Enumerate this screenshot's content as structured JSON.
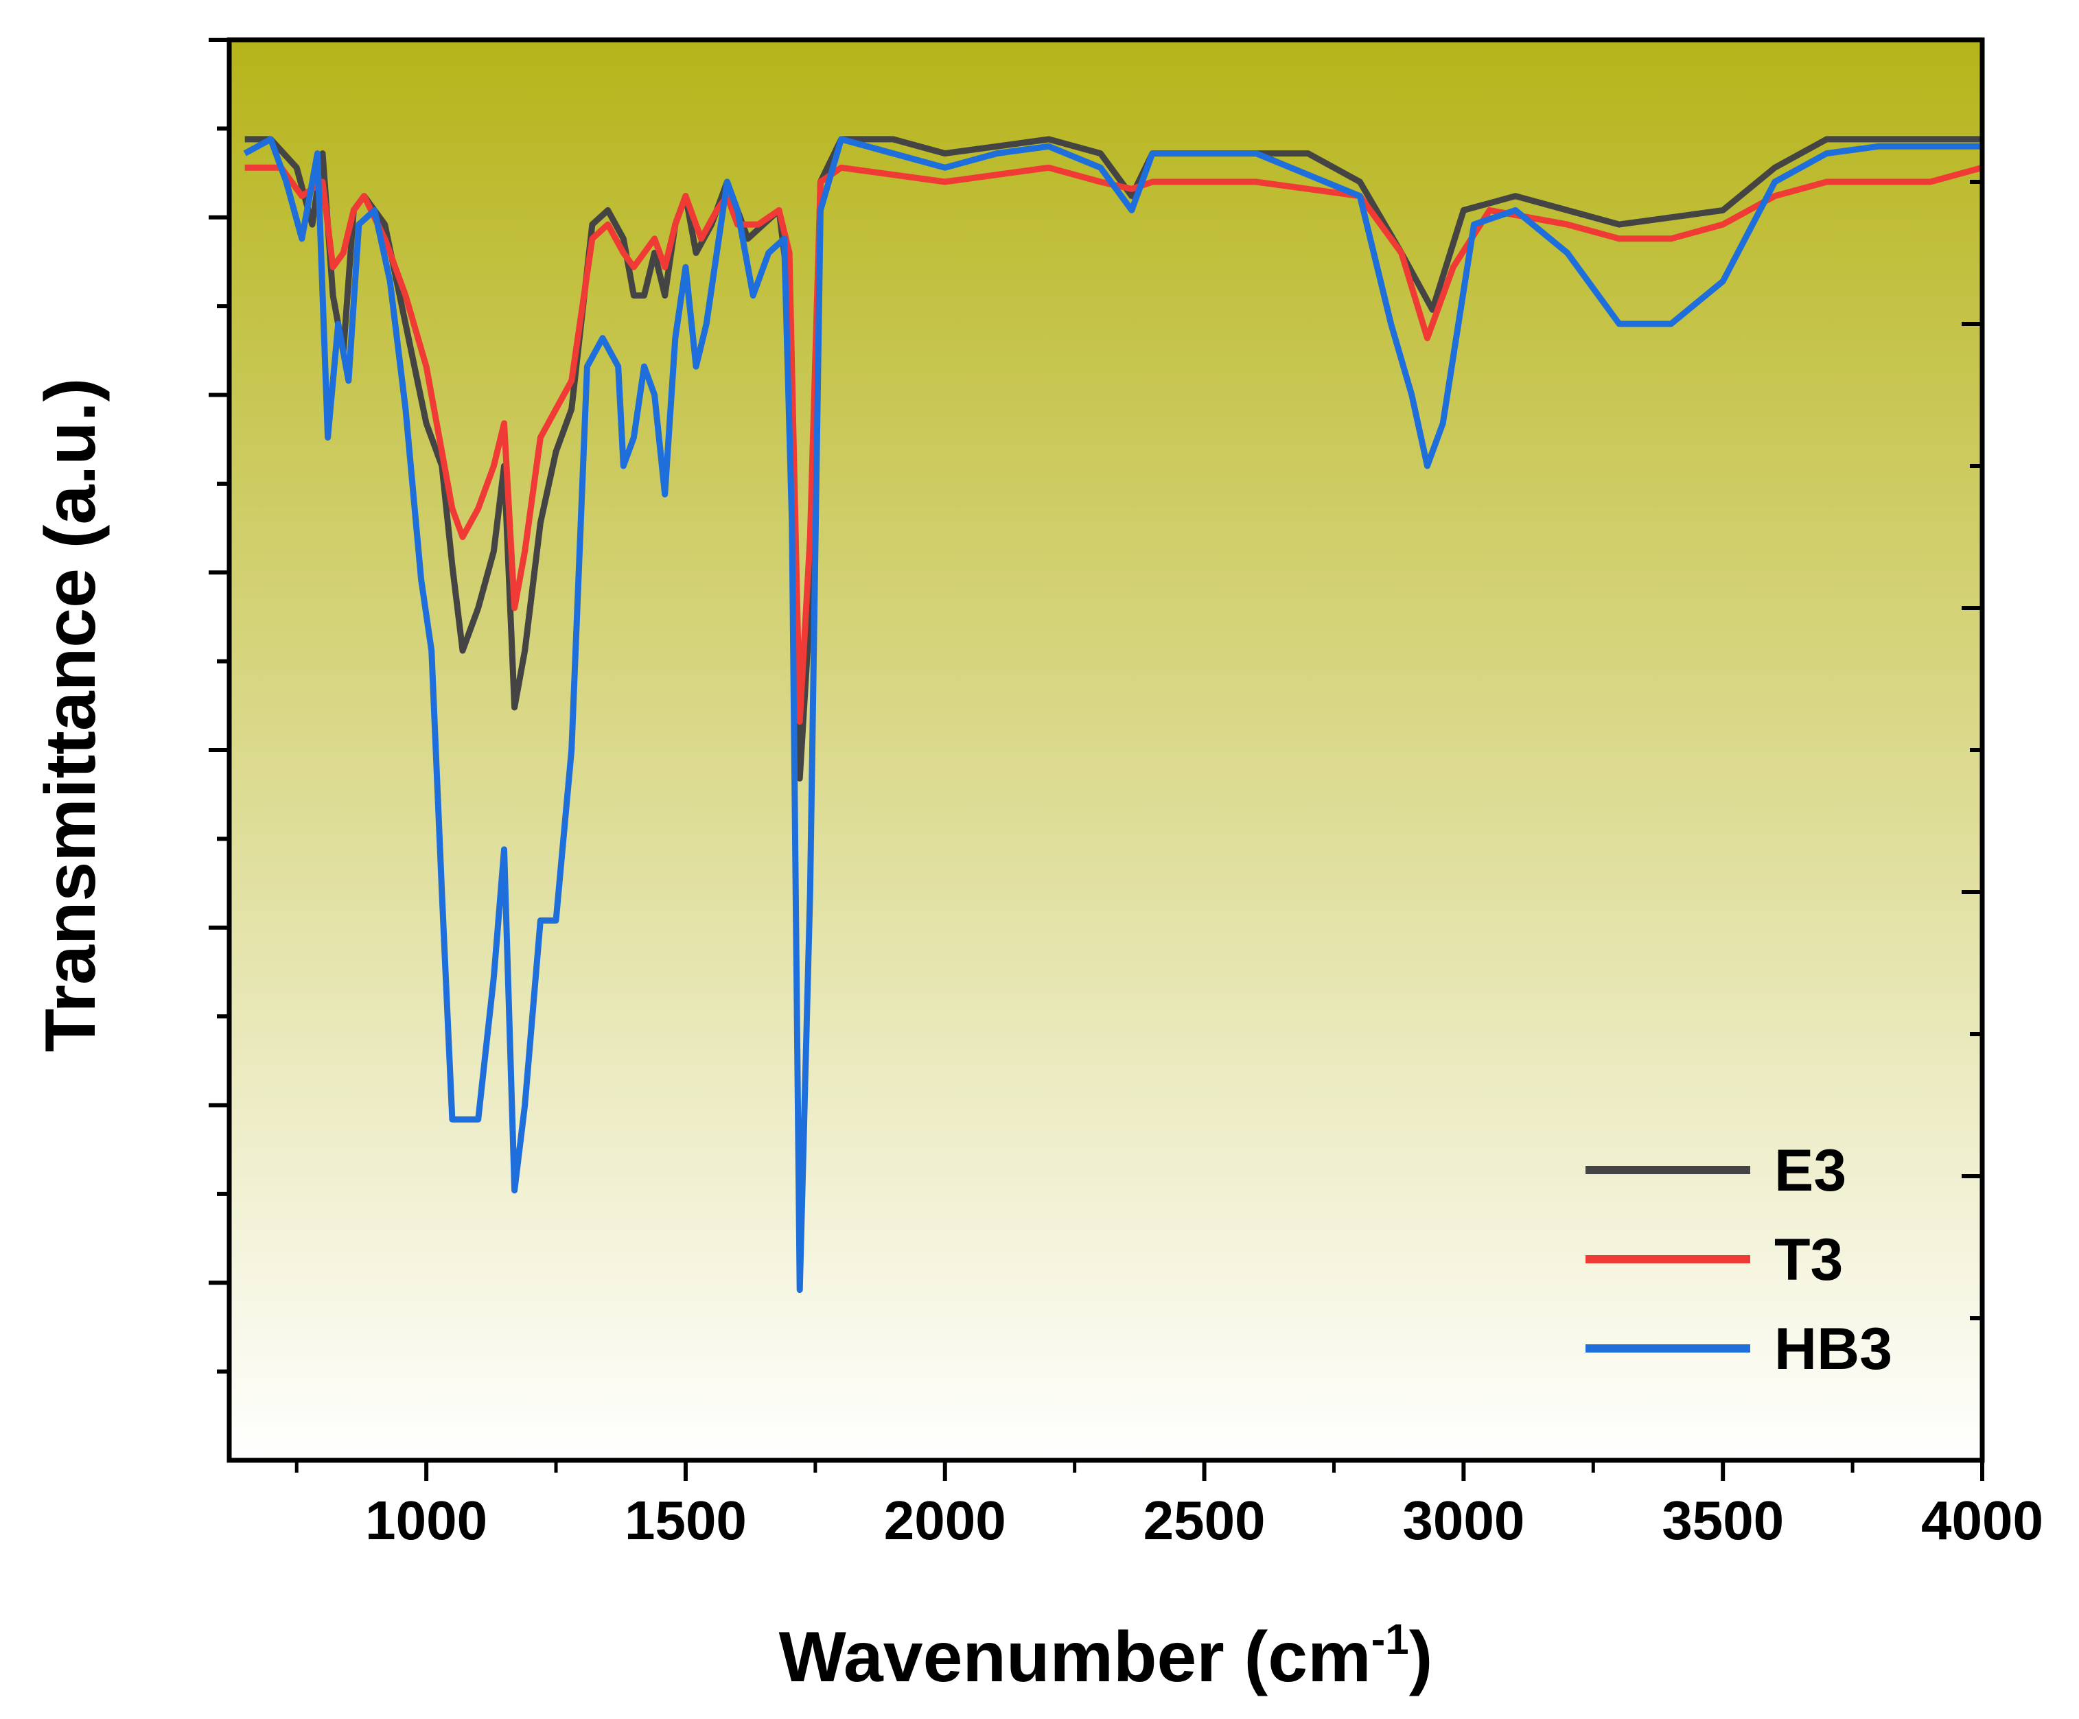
{
  "chart_data": {
    "type": "line",
    "xlabel": "Wavenumber (cm",
    "xlabel_sup": "-1",
    "xlabel_close": ")",
    "ylabel": "Transmittance (a.u.)",
    "xlim": [
      620,
      4000
    ],
    "ylim": [
      0,
      100
    ],
    "x_ticks": [
      1000,
      1500,
      2000,
      2500,
      3000,
      3500,
      4000
    ],
    "y_tick_labels": "none",
    "grid": false,
    "legend_position": "bottom-right",
    "background": {
      "top": "#b6b41a",
      "bottom": "#ffffff"
    },
    "series": [
      {
        "name": "E3",
        "color": "#444444",
        "points": [
          [
            650,
            93
          ],
          [
            700,
            93
          ],
          [
            750,
            91
          ],
          [
            780,
            87
          ],
          [
            800,
            92
          ],
          [
            820,
            82
          ],
          [
            840,
            78
          ],
          [
            860,
            88
          ],
          [
            880,
            89
          ],
          [
            920,
            87
          ],
          [
            960,
            80
          ],
          [
            1000,
            73
          ],
          [
            1030,
            70
          ],
          [
            1050,
            63
          ],
          [
            1070,
            57
          ],
          [
            1100,
            60
          ],
          [
            1130,
            64
          ],
          [
            1150,
            70
          ],
          [
            1170,
            53
          ],
          [
            1190,
            57
          ],
          [
            1220,
            66
          ],
          [
            1250,
            71
          ],
          [
            1280,
            74
          ],
          [
            1320,
            87
          ],
          [
            1350,
            88
          ],
          [
            1380,
            86
          ],
          [
            1400,
            82
          ],
          [
            1420,
            82
          ],
          [
            1440,
            85
          ],
          [
            1460,
            82
          ],
          [
            1480,
            87
          ],
          [
            1500,
            89
          ],
          [
            1520,
            85
          ],
          [
            1550,
            87
          ],
          [
            1580,
            90
          ],
          [
            1600,
            88
          ],
          [
            1620,
            86
          ],
          [
            1650,
            87
          ],
          [
            1680,
            88
          ],
          [
            1700,
            82
          ],
          [
            1720,
            48
          ],
          [
            1740,
            60
          ],
          [
            1760,
            90
          ],
          [
            1800,
            93
          ],
          [
            1900,
            93
          ],
          [
            2000,
            92
          ],
          [
            2100,
            92.5
          ],
          [
            2200,
            93
          ],
          [
            2300,
            92
          ],
          [
            2360,
            89
          ],
          [
            2400,
            92
          ],
          [
            2500,
            92
          ],
          [
            2700,
            92
          ],
          [
            2800,
            90
          ],
          [
            2880,
            85
          ],
          [
            2940,
            81
          ],
          [
            3000,
            88
          ],
          [
            3100,
            89
          ],
          [
            3200,
            88
          ],
          [
            3300,
            87
          ],
          [
            3400,
            87.5
          ],
          [
            3500,
            88
          ],
          [
            3600,
            91
          ],
          [
            3700,
            93
          ],
          [
            3800,
            93
          ],
          [
            3900,
            93
          ],
          [
            4000,
            93
          ]
        ]
      },
      {
        "name": "T3",
        "color": "#ef3a35",
        "points": [
          [
            650,
            91
          ],
          [
            720,
            91
          ],
          [
            760,
            89
          ],
          [
            800,
            90
          ],
          [
            820,
            84
          ],
          [
            840,
            85
          ],
          [
            860,
            88
          ],
          [
            880,
            89
          ],
          [
            920,
            86
          ],
          [
            960,
            82
          ],
          [
            1000,
            77
          ],
          [
            1030,
            71
          ],
          [
            1050,
            67
          ],
          [
            1070,
            65
          ],
          [
            1100,
            67
          ],
          [
            1130,
            70
          ],
          [
            1150,
            73
          ],
          [
            1170,
            60
          ],
          [
            1190,
            64
          ],
          [
            1220,
            72
          ],
          [
            1250,
            74
          ],
          [
            1280,
            76
          ],
          [
            1320,
            86
          ],
          [
            1350,
            87
          ],
          [
            1380,
            85
          ],
          [
            1400,
            84
          ],
          [
            1420,
            85
          ],
          [
            1440,
            86
          ],
          [
            1460,
            84
          ],
          [
            1480,
            87
          ],
          [
            1500,
            89
          ],
          [
            1530,
            86
          ],
          [
            1560,
            88
          ],
          [
            1580,
            89
          ],
          [
            1600,
            87
          ],
          [
            1640,
            87
          ],
          [
            1680,
            88
          ],
          [
            1700,
            85
          ],
          [
            1720,
            52
          ],
          [
            1740,
            65
          ],
          [
            1760,
            90
          ],
          [
            1800,
            91
          ],
          [
            2000,
            90
          ],
          [
            2200,
            91
          ],
          [
            2300,
            90
          ],
          [
            2360,
            89.5
          ],
          [
            2400,
            90
          ],
          [
            2600,
            90
          ],
          [
            2800,
            89
          ],
          [
            2880,
            85
          ],
          [
            2930,
            79
          ],
          [
            2980,
            84
          ],
          [
            3050,
            88
          ],
          [
            3200,
            87
          ],
          [
            3300,
            86
          ],
          [
            3400,
            86
          ],
          [
            3500,
            87
          ],
          [
            3600,
            89
          ],
          [
            3700,
            90
          ],
          [
            3800,
            90
          ],
          [
            3900,
            90
          ],
          [
            4000,
            91
          ]
        ]
      },
      {
        "name": "HB3",
        "color": "#1e6fdc",
        "points": [
          [
            650,
            92
          ],
          [
            700,
            93
          ],
          [
            730,
            90
          ],
          [
            760,
            86
          ],
          [
            790,
            92
          ],
          [
            810,
            72
          ],
          [
            830,
            80
          ],
          [
            850,
            76
          ],
          [
            870,
            87
          ],
          [
            900,
            88
          ],
          [
            930,
            83
          ],
          [
            960,
            74
          ],
          [
            990,
            62
          ],
          [
            1010,
            57
          ],
          [
            1030,
            40
          ],
          [
            1050,
            24
          ],
          [
            1070,
            24
          ],
          [
            1100,
            24
          ],
          [
            1130,
            34
          ],
          [
            1150,
            43
          ],
          [
            1170,
            19
          ],
          [
            1190,
            25
          ],
          [
            1220,
            38
          ],
          [
            1250,
            38
          ],
          [
            1280,
            50
          ],
          [
            1310,
            77
          ],
          [
            1340,
            79
          ],
          [
            1370,
            77
          ],
          [
            1380,
            70
          ],
          [
            1400,
            72
          ],
          [
            1420,
            77
          ],
          [
            1440,
            75
          ],
          [
            1460,
            68
          ],
          [
            1480,
            79
          ],
          [
            1500,
            84
          ],
          [
            1520,
            77
          ],
          [
            1540,
            80
          ],
          [
            1560,
            85
          ],
          [
            1580,
            90
          ],
          [
            1600,
            88
          ],
          [
            1630,
            82
          ],
          [
            1660,
            85
          ],
          [
            1690,
            86
          ],
          [
            1705,
            66
          ],
          [
            1720,
            12
          ],
          [
            1740,
            40
          ],
          [
            1760,
            88
          ],
          [
            1800,
            93
          ],
          [
            1900,
            92
          ],
          [
            2000,
            91
          ],
          [
            2100,
            92
          ],
          [
            2200,
            92.5
          ],
          [
            2300,
            91
          ],
          [
            2360,
            88
          ],
          [
            2400,
            92
          ],
          [
            2600,
            92
          ],
          [
            2800,
            89
          ],
          [
            2860,
            80
          ],
          [
            2900,
            75
          ],
          [
            2930,
            70
          ],
          [
            2960,
            73
          ],
          [
            2990,
            80
          ],
          [
            3020,
            87
          ],
          [
            3100,
            88
          ],
          [
            3200,
            85
          ],
          [
            3300,
            80
          ],
          [
            3400,
            80
          ],
          [
            3500,
            83
          ],
          [
            3600,
            90
          ],
          [
            3700,
            92
          ],
          [
            3800,
            92.5
          ],
          [
            3900,
            92.5
          ],
          [
            4000,
            92.5
          ]
        ]
      }
    ]
  }
}
